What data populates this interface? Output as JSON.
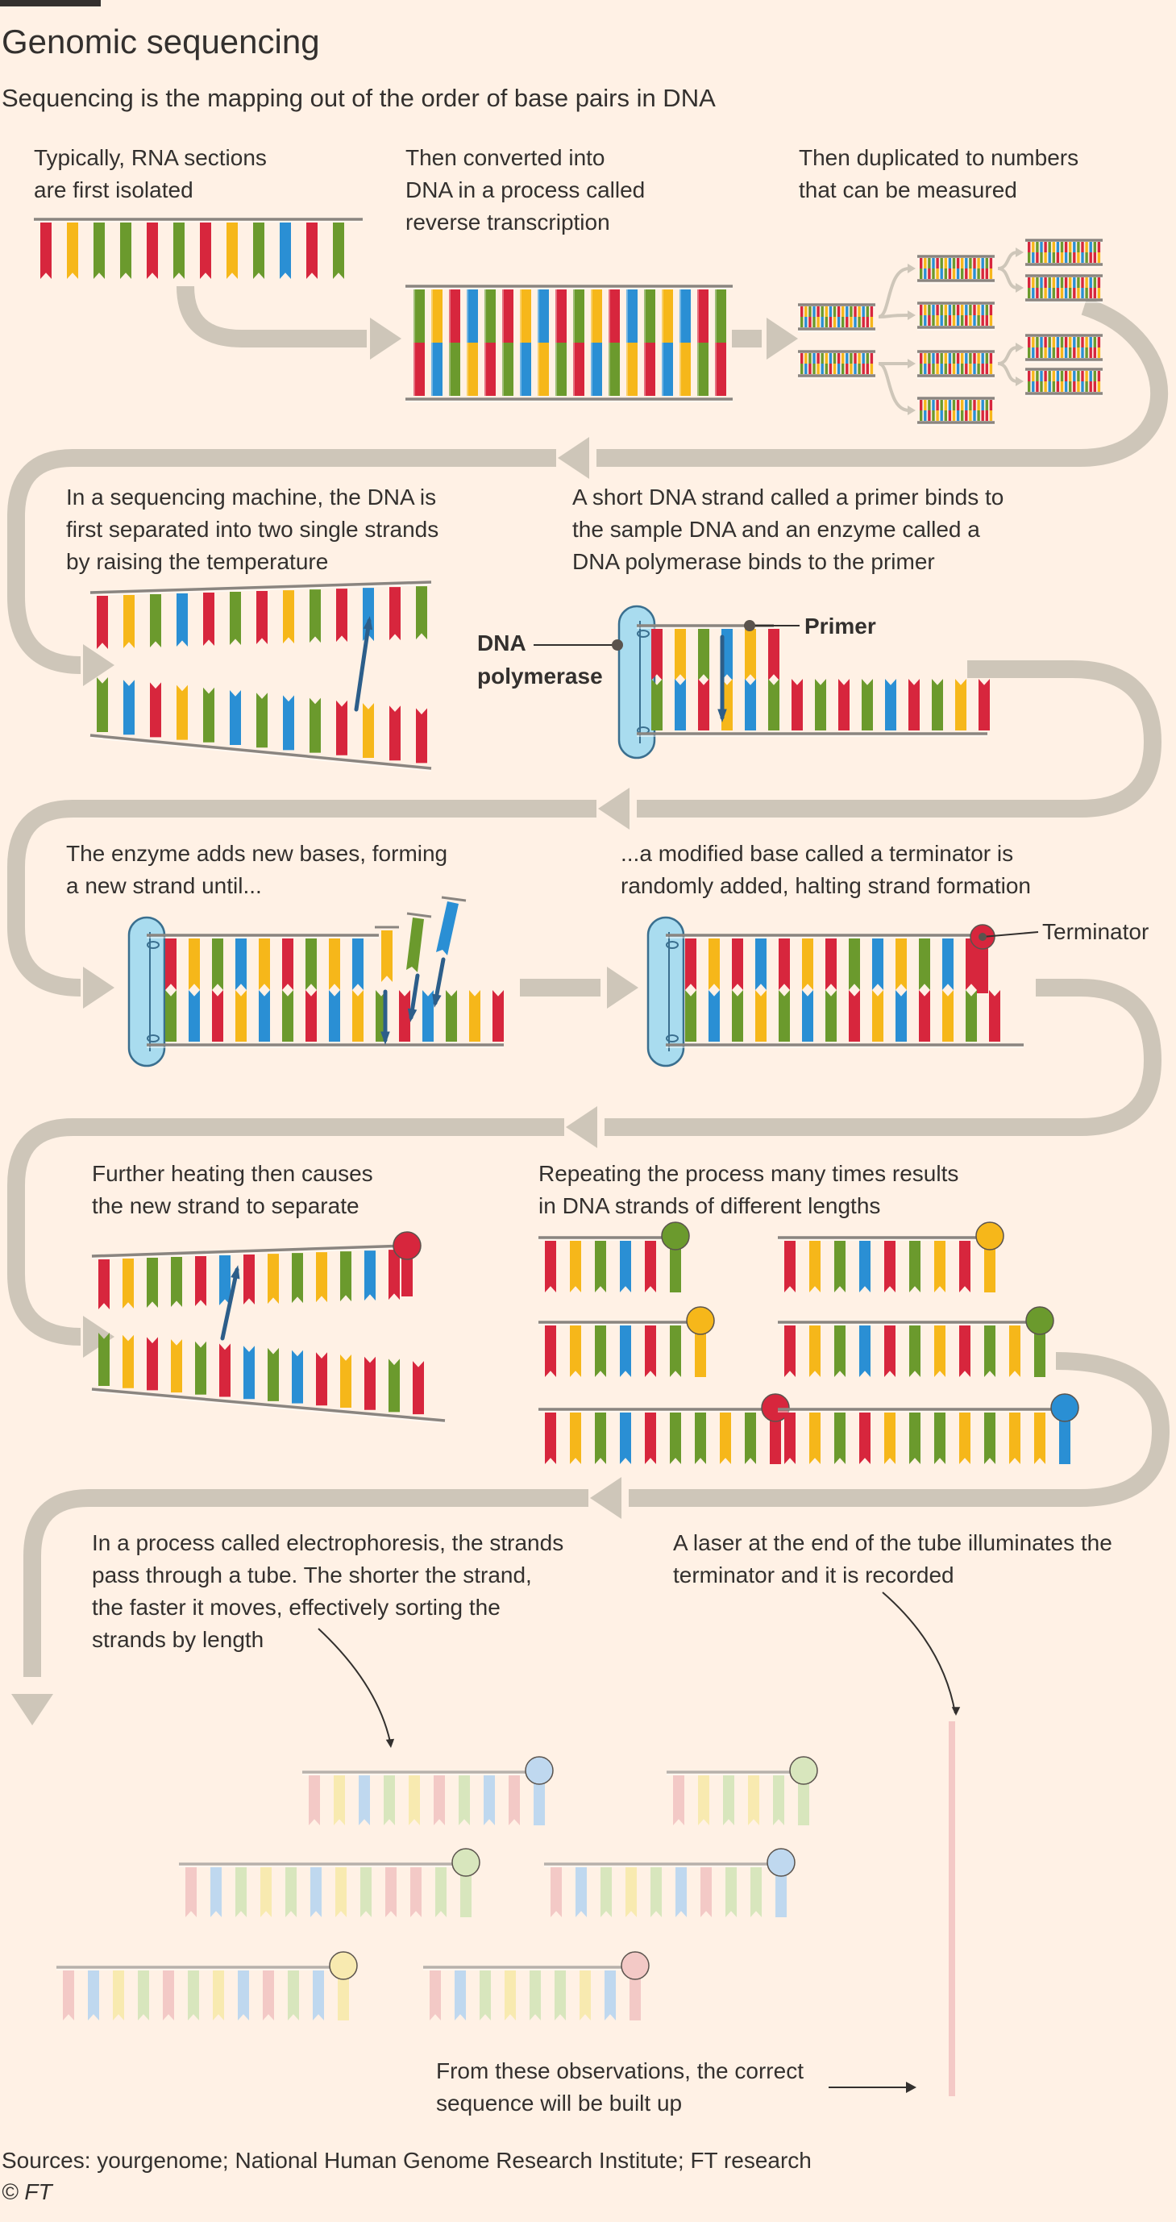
{
  "header": {
    "title": "Genomic sequencing",
    "subtitle": "Sequencing is the mapping out of the order of base pairs in DNA"
  },
  "colors": {
    "background": "#fff1e5",
    "path": "#cec6b9",
    "red": "#d7263d",
    "yellow": "#f6b71a",
    "green": "#6b9a2d",
    "blue": "#2a8fd4",
    "backbone": "#8a8580",
    "polymerase": "#a9dcef",
    "polymerase_edge": "#3a6f8f",
    "tube": "#f4c9c6"
  },
  "steps": [
    {
      "id": "isolate",
      "lines": [
        "Typically, RNA sections",
        "are first isolated"
      ]
    },
    {
      "id": "convert",
      "lines": [
        "Then converted into",
        "DNA in a process called",
        "reverse transcription"
      ]
    },
    {
      "id": "duplicate",
      "lines": [
        "Then duplicated to numbers",
        "that can be measured"
      ]
    },
    {
      "id": "separate",
      "lines": [
        "In a sequencing machine, the DNA is",
        "first separated into two single strands",
        "by raising the temperature"
      ]
    },
    {
      "id": "primer",
      "lines": [
        "A short DNA strand called a primer binds to",
        "the sample DNA and an enzyme called a",
        "DNA polymerase binds to the primer"
      ]
    },
    {
      "id": "enzyme",
      "lines": [
        "The enzyme adds new bases, forming",
        "a new strand until..."
      ]
    },
    {
      "id": "terminator",
      "lines": [
        "...a modified base called a terminator is",
        "randomly added, halting strand formation"
      ]
    },
    {
      "id": "heating",
      "lines": [
        "Further heating then causes",
        "the new strand to separate"
      ]
    },
    {
      "id": "repeat",
      "lines": [
        "Repeating the process many times results",
        "in DNA strands of different lengths"
      ]
    },
    {
      "id": "electrophoresis",
      "lines": [
        "In a process called electrophoresis, the strands",
        "pass through a tube. The shorter the strand,",
        "the faster it moves, effectively sorting the",
        "strands by length"
      ]
    },
    {
      "id": "laser",
      "lines": [
        "A laser at the end of the tube illuminates the",
        "terminator and it is recorded"
      ]
    },
    {
      "id": "observations",
      "lines": [
        "From these observations, the correct",
        "sequence will be built up"
      ]
    }
  ],
  "labels": {
    "dna": "DNA",
    "polymerase": "polymerase",
    "primer": "Primer",
    "terminator": "Terminator"
  },
  "footer": {
    "sources": "Sources: yourgenome; National Human Genome Research Institute; FT research",
    "credit": "© FT"
  }
}
